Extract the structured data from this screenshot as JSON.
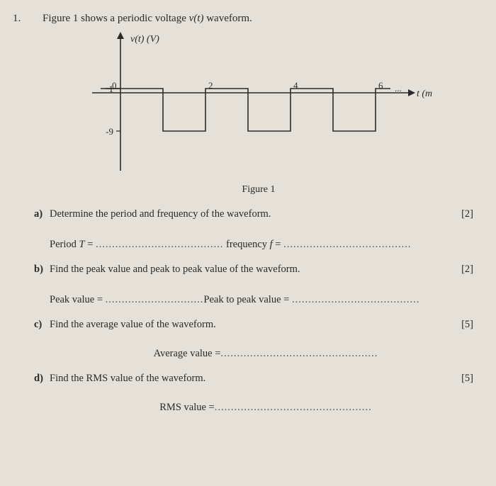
{
  "question_number": "1.",
  "prompt_pre": "Figure 1 shows a periodic voltage ",
  "prompt_var": "v(t)",
  "prompt_post": " waveform.",
  "figure": {
    "y_label": "v(t) (V)",
    "x_label": "t (ms)",
    "y_ticks": [
      {
        "v": 1,
        "label": "1"
      },
      {
        "v": -9,
        "label": "-9"
      }
    ],
    "x_ticks": [
      {
        "v": 0,
        "label": "0"
      },
      {
        "v": 2,
        "label": "2"
      },
      {
        "v": 4,
        "label": "4"
      },
      {
        "v": 6,
        "label": "6"
      }
    ],
    "y_high": 1,
    "y_low": -9,
    "period": 2,
    "duty_high_start": 0,
    "duty_high_len": 1,
    "caption": "Figure 1",
    "axis_color": "#2a2a2a",
    "wave_color": "#2a2a2a",
    "line_width": 1.6
  },
  "parts": {
    "a": {
      "label": "a)",
      "text": "Determine the period and frequency of the waveform.",
      "marks": "[2]",
      "blank1_pre": "Period ",
      "blank1_sym": "T",
      "blank1_eq": " = ",
      "blank2_pre": " frequency ",
      "blank2_sym": "f",
      "blank2_eq": " = "
    },
    "b": {
      "label": "b)",
      "text": "Find the peak value and peak to peak value of the waveform.",
      "marks": "[2]",
      "blank1": "Peak value = ",
      "blank2": "Peak to peak value   =  "
    },
    "c": {
      "label": "c)",
      "text": "Find the average value of the waveform.",
      "marks": "[5]",
      "blank": "Average value ="
    },
    "d": {
      "label": "d)",
      "text": "Find the RMS value of the waveform.",
      "marks": "[5]",
      "blank": "RMS value ="
    }
  },
  "dots_short": "..............................",
  "dots_med": ".......................................",
  "dots_long": "................................................"
}
